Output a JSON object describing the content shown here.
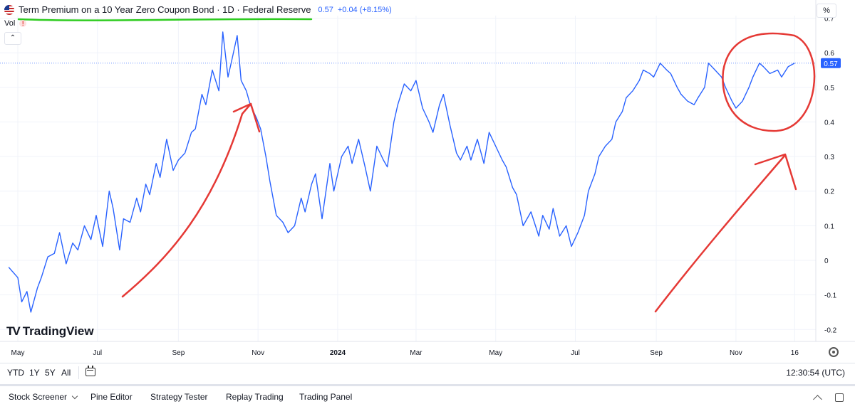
{
  "header": {
    "title": "Term Premium on a 10 Year Zero Coupon Bond · 1D · Federal Reserve",
    "last_value": "0.57",
    "change": "+0.04 (+8.15%)",
    "vol_label": "Vol",
    "unit_button": "%",
    "flag_icon": "us-flag-icon",
    "warning_icon": "warning-icon"
  },
  "logo": {
    "text": "TradingView"
  },
  "range_buttons": [
    "YTD",
    "1Y",
    "5Y",
    "All"
  ],
  "clock": "12:30:54 (UTC)",
  "bottom_tabs": [
    "Stock Screener",
    "Pine Editor",
    "Strategy Tester",
    "Replay Trading",
    "Trading Panel"
  ],
  "colors": {
    "line": "#2962ff",
    "annotation": "#e53935",
    "underline": "#2ecc1f",
    "grid": "#f0f3fa",
    "price_label_bg": "#2962ff"
  },
  "chart_data": {
    "type": "line",
    "title": "Term Premium on a 10 Year Zero Coupon Bond · 1D · Federal Reserve",
    "ylabel": "%",
    "xlabel": "",
    "y_ticks": [
      0.7,
      0.6,
      0.5,
      0.4,
      0.3,
      0.2,
      0.1,
      0,
      -0.1,
      -0.2
    ],
    "y_tick_labels": [
      "0.7",
      "0.6",
      "0.5",
      "0.4",
      "0.3",
      "0.2",
      "0.1",
      "0",
      "-0.1",
      "-0.2"
    ],
    "ylim": [
      -0.24,
      0.71
    ],
    "x_range": [
      "2023-05-01",
      "2024-12-24"
    ],
    "x_ticks": [
      {
        "date": "2023-05-01",
        "label": "May"
      },
      {
        "date": "2023-07-01",
        "label": "Jul"
      },
      {
        "date": "2023-09-01",
        "label": "Sep"
      },
      {
        "date": "2023-11-01",
        "label": "Nov"
      },
      {
        "date": "2024-01-01",
        "label": "2024"
      },
      {
        "date": "2024-03-01",
        "label": "Mar"
      },
      {
        "date": "2024-05-01",
        "label": "May"
      },
      {
        "date": "2024-07-01",
        "label": "Jul"
      },
      {
        "date": "2024-09-01",
        "label": "Sep"
      },
      {
        "date": "2024-11-01",
        "label": "Nov"
      },
      {
        "date": "2024-12-16",
        "label": "16"
      }
    ],
    "last_value_label": "0.57",
    "last_value": 0.57,
    "series": [
      {
        "x": [
          "2023-04-24",
          "2023-05-01",
          "2023-05-04",
          "2023-05-08",
          "2023-05-11",
          "2023-05-16",
          "2023-05-19",
          "2023-05-24",
          "2023-05-29",
          "2023-06-02",
          "2023-06-07",
          "2023-06-12",
          "2023-06-16",
          "2023-06-21",
          "2023-06-26",
          "2023-06-30",
          "2023-07-05",
          "2023-07-10",
          "2023-07-13",
          "2023-07-18",
          "2023-07-21",
          "2023-07-26",
          "2023-07-31",
          "2023-08-03",
          "2023-08-07",
          "2023-08-10",
          "2023-08-15",
          "2023-08-18",
          "2023-08-23",
          "2023-08-28",
          "2023-09-01",
          "2023-09-06",
          "2023-09-11",
          "2023-09-14",
          "2023-09-19",
          "2023-09-22",
          "2023-09-27",
          "2023-10-02",
          "2023-10-05",
          "2023-10-09",
          "2023-10-12",
          "2023-10-16",
          "2023-10-19",
          "2023-10-23",
          "2023-10-26",
          "2023-10-31",
          "2023-11-03",
          "2023-11-07",
          "2023-11-10",
          "2023-11-15",
          "2023-11-20",
          "2023-11-24",
          "2023-11-29",
          "2023-12-04",
          "2023-12-07",
          "2023-12-12",
          "2023-12-15",
          "2023-12-20",
          "2023-12-26",
          "2023-12-29",
          "2024-01-04",
          "2024-01-09",
          "2024-01-12",
          "2024-01-17",
          "2024-01-22",
          "2024-01-26",
          "2024-01-31",
          "2024-02-05",
          "2024-02-08",
          "2024-02-13",
          "2024-02-16",
          "2024-02-21",
          "2024-02-26",
          "2024-03-01",
          "2024-03-06",
          "2024-03-11",
          "2024-03-14",
          "2024-03-19",
          "2024-03-22",
          "2024-03-27",
          "2024-04-01",
          "2024-04-04",
          "2024-04-09",
          "2024-04-12",
          "2024-04-17",
          "2024-04-22",
          "2024-04-26",
          "2024-05-01",
          "2024-05-06",
          "2024-05-09",
          "2024-05-14",
          "2024-05-17",
          "2024-05-22",
          "2024-05-28",
          "2024-06-03",
          "2024-06-06",
          "2024-06-11",
          "2024-06-14",
          "2024-06-19",
          "2024-06-24",
          "2024-06-28",
          "2024-07-03",
          "2024-07-08",
          "2024-07-11",
          "2024-07-16",
          "2024-07-19",
          "2024-07-24",
          "2024-07-29",
          "2024-08-01",
          "2024-08-06",
          "2024-08-09",
          "2024-08-14",
          "2024-08-19",
          "2024-08-22",
          "2024-08-27",
          "2024-08-30",
          "2024-09-04",
          "2024-09-09",
          "2024-09-12",
          "2024-09-17",
          "2024-09-20",
          "2024-09-25",
          "2024-09-30",
          "2024-10-03",
          "2024-10-08",
          "2024-10-11",
          "2024-10-16",
          "2024-10-21",
          "2024-10-24",
          "2024-10-29",
          "2024-11-01",
          "2024-11-06",
          "2024-11-11",
          "2024-11-14",
          "2024-11-19",
          "2024-11-22",
          "2024-11-27",
          "2024-12-03",
          "2024-12-06",
          "2024-12-11",
          "2024-12-16"
        ],
        "values": [
          -0.02,
          -0.05,
          -0.12,
          -0.09,
          -0.15,
          -0.08,
          -0.05,
          0.01,
          0.02,
          0.08,
          -0.01,
          0.05,
          0.03,
          0.1,
          0.06,
          0.13,
          0.04,
          0.2,
          0.15,
          0.03,
          0.12,
          0.11,
          0.18,
          0.14,
          0.22,
          0.19,
          0.28,
          0.24,
          0.35,
          0.26,
          0.29,
          0.31,
          0.37,
          0.38,
          0.48,
          0.45,
          0.55,
          0.49,
          0.66,
          0.53,
          0.58,
          0.65,
          0.52,
          0.49,
          0.45,
          0.41,
          0.38,
          0.3,
          0.23,
          0.13,
          0.11,
          0.08,
          0.1,
          0.18,
          0.14,
          0.22,
          0.25,
          0.12,
          0.28,
          0.2,
          0.3,
          0.33,
          0.28,
          0.35,
          0.27,
          0.2,
          0.33,
          0.29,
          0.27,
          0.4,
          0.45,
          0.51,
          0.49,
          0.52,
          0.44,
          0.4,
          0.37,
          0.45,
          0.48,
          0.39,
          0.31,
          0.29,
          0.33,
          0.29,
          0.35,
          0.28,
          0.37,
          0.33,
          0.29,
          0.27,
          0.21,
          0.19,
          0.1,
          0.14,
          0.07,
          0.13,
          0.09,
          0.15,
          0.07,
          0.1,
          0.04,
          0.08,
          0.13,
          0.2,
          0.25,
          0.3,
          0.33,
          0.35,
          0.4,
          0.43,
          0.47,
          0.49,
          0.52,
          0.55,
          0.54,
          0.53,
          0.57,
          0.55,
          0.54,
          0.5,
          0.48,
          0.46,
          0.45,
          0.47,
          0.5,
          0.57,
          0.55,
          0.53,
          0.5,
          0.46,
          0.44,
          0.46,
          0.5,
          0.53,
          0.57,
          0.56,
          0.54,
          0.55,
          0.53,
          0.56,
          0.57
        ]
      }
    ]
  }
}
